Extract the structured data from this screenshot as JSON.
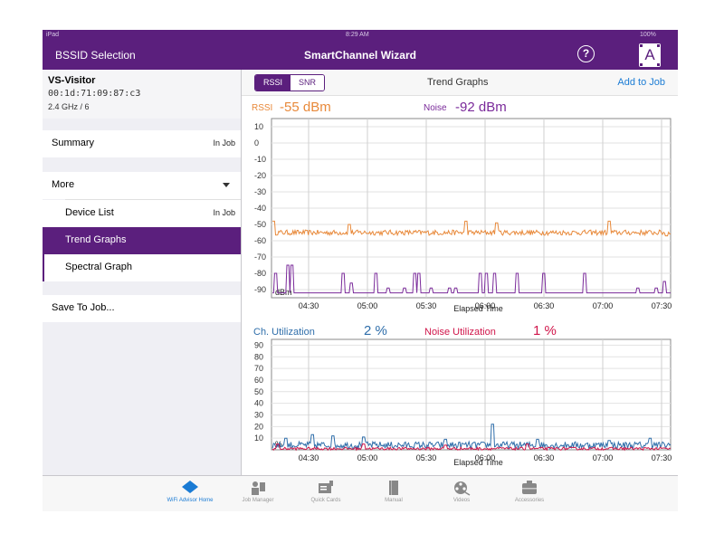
{
  "status_bar": {
    "carrier": "iPad",
    "time": "8:29 AM",
    "battery": "100%"
  },
  "nav": {
    "left": "BSSID Selection",
    "title": "SmartChannel Wizard",
    "help": "?",
    "badge": "A"
  },
  "device": {
    "ssid": "VS-Visitor",
    "bssid": "00:1d:71:09:87:c3",
    "band_channel": "2.4 GHz / 6"
  },
  "sidebar": {
    "summary": {
      "label": "Summary",
      "status": "In Job"
    },
    "more": {
      "label": "More"
    },
    "device_list": {
      "label": "Device List",
      "status": "In Job"
    },
    "trend_graphs": {
      "label": "Trend Graphs"
    },
    "spectral_graph": {
      "label": "Spectral Graph"
    },
    "save_to_job": {
      "label": "Save To Job..."
    }
  },
  "toolbar": {
    "seg_rssi": "RSSI",
    "seg_snr": "SNR",
    "title": "Trend Graphs",
    "add_to_job": "Add to Job"
  },
  "readouts": {
    "rssi_label": "RSSI",
    "rssi_value": "-55 dBm",
    "noise_label": "Noise",
    "noise_value": "-92 dBm",
    "util_label": "Ch. Utilization",
    "util_value": "2 %",
    "noise_util_label": "Noise Utilization",
    "noise_util_value": "1 %"
  },
  "colors": {
    "brand": "#5b1f7d",
    "rssi": "#e8893a",
    "noise": "#7a2a9a",
    "utilization": "#2f6eaa",
    "noise_utilization": "#d0154a",
    "link": "#1a7bd4"
  },
  "chart_data": [
    {
      "type": "line",
      "xlabel": "Elapsed Time",
      "ylabel": "dBm",
      "x_ticks": [
        "04:30",
        "05:00",
        "05:30",
        "06:00",
        "06:30",
        "07:00",
        "07:30"
      ],
      "y_ticks": [
        10,
        0,
        -10,
        -20,
        -30,
        -40,
        -50,
        -60,
        -70,
        -80,
        -90
      ],
      "ylim": [
        -95,
        15
      ],
      "xlim_minutes": [
        255,
        450
      ],
      "grid": true,
      "series": [
        {
          "name": "RSSI",
          "color": "#e8893a",
          "baseline": -55,
          "spikes": [
            [
              256,
              -48
            ],
            [
              293,
              -50
            ],
            [
              350,
              -48
            ],
            [
              365,
              -49
            ],
            [
              420,
              -48
            ],
            [
              448,
              -57
            ]
          ]
        },
        {
          "name": "Noise",
          "color": "#7a2a9a",
          "baseline": -92,
          "spikes": [
            [
              257,
              -80
            ],
            [
              263,
              -75
            ],
            [
              265,
              -75
            ],
            [
              290,
              -80
            ],
            [
              294,
              -86
            ],
            [
              306,
              -80
            ],
            [
              312,
              -89
            ],
            [
              320,
              -89
            ],
            [
              325,
              -80
            ],
            [
              327,
              -80
            ],
            [
              333,
              -89
            ],
            [
              342,
              -89
            ],
            [
              345,
              -89
            ],
            [
              357,
              -80
            ],
            [
              360,
              -80
            ],
            [
              364,
              -80
            ],
            [
              375,
              -80
            ],
            [
              388,
              -80
            ],
            [
              408,
              -80
            ],
            [
              434,
              -89
            ],
            [
              443,
              -89
            ],
            [
              447,
              -85
            ]
          ]
        }
      ]
    },
    {
      "type": "line",
      "xlabel": "Elapsed Time",
      "ylabel": "%",
      "x_ticks": [
        "04:30",
        "05:00",
        "05:30",
        "06:00",
        "06:30",
        "07:00",
        "07:30"
      ],
      "y_ticks": [
        90,
        80,
        70,
        60,
        50,
        40,
        30,
        20,
        10
      ],
      "ylim": [
        0,
        95
      ],
      "xlim_minutes": [
        255,
        450
      ],
      "grid": true,
      "series": [
        {
          "name": "Ch. Utilization",
          "color": "#2f6eaa",
          "baseline": 4,
          "spikes": [
            [
              262,
              10
            ],
            [
              275,
              13
            ],
            [
              285,
              12
            ],
            [
              300,
              11
            ],
            [
              340,
              9
            ],
            [
              363,
              22
            ],
            [
              385,
              9
            ],
            [
              420,
              8
            ],
            [
              440,
              10
            ]
          ]
        },
        {
          "name": "Noise Utilization",
          "color": "#d0154a",
          "baseline": 1,
          "spikes": [
            [
              258,
              5
            ],
            [
              300,
              5
            ],
            [
              340,
              4
            ],
            [
              380,
              5
            ]
          ]
        }
      ]
    }
  ],
  "tabbar": [
    {
      "label": "WiFi Advisor Home"
    },
    {
      "label": "Job Manager"
    },
    {
      "label": "Quick Cards"
    },
    {
      "label": "Manual"
    },
    {
      "label": "Videos"
    },
    {
      "label": "Accessories"
    }
  ]
}
